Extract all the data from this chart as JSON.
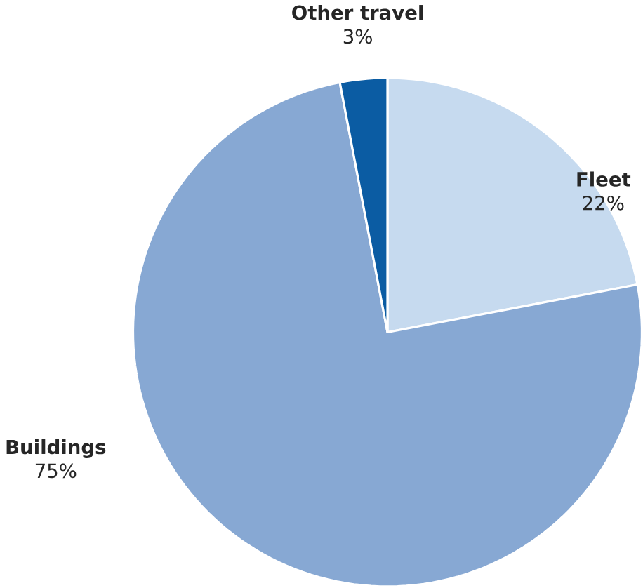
{
  "chart_data": {
    "type": "pie",
    "categories": [
      "Fleet",
      "Buildings",
      "Other travel"
    ],
    "values": [
      22,
      75,
      3
    ],
    "value_labels": [
      "22%",
      "75%",
      "3%"
    ],
    "colors": [
      "#c6daef",
      "#87a8d3",
      "#0b5ca3"
    ]
  }
}
